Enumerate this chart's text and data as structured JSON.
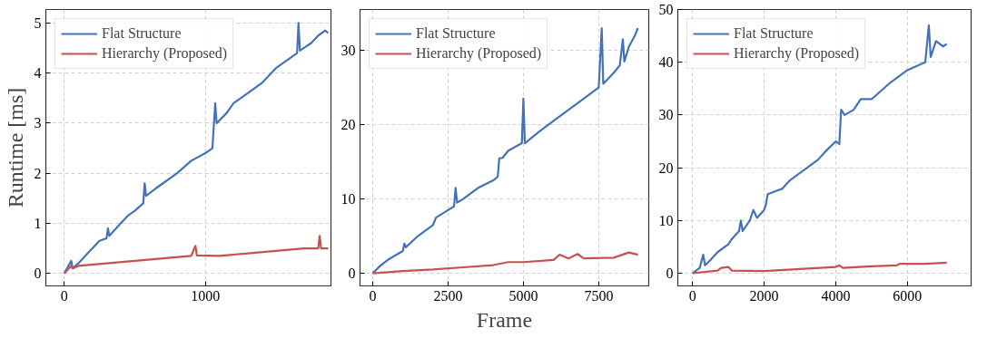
{
  "chart_data": [
    {
      "type": "line",
      "ylabel": "Runtime [ms]",
      "xlim": [
        -130,
        1890
      ],
      "xticks": [
        0,
        1000
      ],
      "ylim": [
        -0.25,
        5.27
      ],
      "yticks": [
        0,
        1,
        2,
        3,
        4,
        5
      ],
      "grid": true,
      "legend": "top left",
      "series": [
        {
          "name": "Flat Structure",
          "color": "#4472b8",
          "x": [
            0,
            50,
            60,
            100,
            150,
            200,
            250,
            300,
            310,
            320,
            400,
            450,
            500,
            560,
            570,
            580,
            650,
            700,
            800,
            900,
            1000,
            1050,
            1070,
            1080,
            1150,
            1200,
            1300,
            1400,
            1500,
            1600,
            1650,
            1660,
            1670,
            1750,
            1800,
            1850,
            1870
          ],
          "values": [
            0,
            0.25,
            0.1,
            0.2,
            0.35,
            0.5,
            0.65,
            0.7,
            0.9,
            0.75,
            1.0,
            1.15,
            1.25,
            1.4,
            1.8,
            1.55,
            1.7,
            1.8,
            2.0,
            2.25,
            2.4,
            2.5,
            3.4,
            3.0,
            3.2,
            3.4,
            3.6,
            3.8,
            4.1,
            4.3,
            4.4,
            5.0,
            4.45,
            4.6,
            4.75,
            4.85,
            4.8
          ]
        },
        {
          "name": "Hierarchy (Proposed)",
          "color": "#c8504f",
          "x": [
            0,
            50,
            60,
            100,
            300,
            500,
            700,
            900,
            930,
            940,
            1100,
            1300,
            1500,
            1700,
            1800,
            1810,
            1820,
            1870
          ],
          "values": [
            0,
            0.15,
            0.1,
            0.15,
            0.2,
            0.25,
            0.3,
            0.35,
            0.55,
            0.36,
            0.35,
            0.4,
            0.45,
            0.5,
            0.5,
            0.75,
            0.5,
            0.5
          ]
        }
      ]
    },
    {
      "type": "line",
      "xlabel": "Frame",
      "xlim": [
        -420,
        9160
      ],
      "xticks": [
        0,
        2500,
        5000,
        7500
      ],
      "ylim": [
        -1.7,
        35.5
      ],
      "yticks": [
        0,
        10,
        20,
        30
      ],
      "grid": true,
      "legend": "top left",
      "series": [
        {
          "name": "Flat Structure",
          "color": "#4472b8",
          "x": [
            0,
            250,
            500,
            1000,
            1050,
            1100,
            1500,
            2000,
            2100,
            2500,
            2700,
            2750,
            2800,
            3000,
            3500,
            4000,
            4150,
            4200,
            4300,
            4500,
            4950,
            5000,
            5050,
            5500,
            6000,
            6500,
            7000,
            7500,
            7600,
            7650,
            8000,
            8200,
            8300,
            8350,
            8500,
            8700,
            8800
          ],
          "values": [
            0,
            1,
            1.8,
            3,
            4,
            3.5,
            5,
            6.5,
            7.5,
            8.5,
            9,
            11.5,
            9.5,
            10,
            11.5,
            12.5,
            13,
            15.5,
            15.5,
            16.5,
            17.5,
            23.5,
            17.5,
            19,
            20.5,
            22,
            23.5,
            25,
            33,
            25.5,
            27,
            28,
            31.5,
            28.5,
            30.5,
            32,
            33
          ]
        },
        {
          "name": "Hierarchy (Proposed)",
          "color": "#c8504f",
          "x": [
            0,
            1000,
            2000,
            3000,
            4000,
            4500,
            5000,
            6000,
            6200,
            6500,
            6800,
            7000,
            8000,
            8500,
            8800
          ],
          "values": [
            0,
            0.3,
            0.5,
            0.8,
            1.1,
            1.5,
            1.5,
            1.8,
            2.5,
            2,
            2.6,
            2,
            2.1,
            2.8,
            2.5
          ]
        }
      ]
    },
    {
      "type": "line",
      "xlim": [
        -410,
        7780
      ],
      "xticks": [
        0,
        2000,
        4000,
        6000
      ],
      "ylim": [
        -2.4,
        50
      ],
      "yticks": [
        0,
        10,
        20,
        30,
        40,
        50
      ],
      "grid": true,
      "legend": "top left",
      "series": [
        {
          "name": "Flat Structure",
          "color": "#4472b8",
          "x": [
            0,
            200,
            300,
            350,
            500,
            700,
            1000,
            1100,
            1300,
            1350,
            1400,
            1600,
            1700,
            1800,
            2000,
            2050,
            2100,
            2300,
            2500,
            2700,
            3000,
            3200,
            3500,
            3700,
            4000,
            4100,
            4150,
            4250,
            4500,
            4700,
            5000,
            5500,
            6000,
            6500,
            6600,
            6650,
            6800,
            7000,
            7100
          ],
          "values": [
            0,
            1,
            3.5,
            1.5,
            2.5,
            4,
            5.5,
            6.5,
            8,
            10,
            8,
            10,
            12,
            10.5,
            12,
            13,
            15,
            15.5,
            16,
            17.5,
            19,
            20,
            21.5,
            23,
            25,
            24.5,
            31,
            30,
            31,
            33,
            33,
            36,
            38.5,
            40,
            47,
            41,
            44,
            43,
            43.5
          ]
        },
        {
          "name": "Hierarchy (Proposed)",
          "color": "#c8504f",
          "x": [
            0,
            700,
            800,
            1000,
            1100,
            2000,
            3000,
            4000,
            4100,
            4200,
            5000,
            5700,
            5800,
            6500,
            7100
          ],
          "values": [
            0,
            0.5,
            1,
            1.2,
            0.5,
            0.4,
            0.8,
            1.2,
            1.5,
            1,
            1.3,
            1.5,
            1.8,
            1.8,
            2
          ]
        }
      ]
    }
  ]
}
